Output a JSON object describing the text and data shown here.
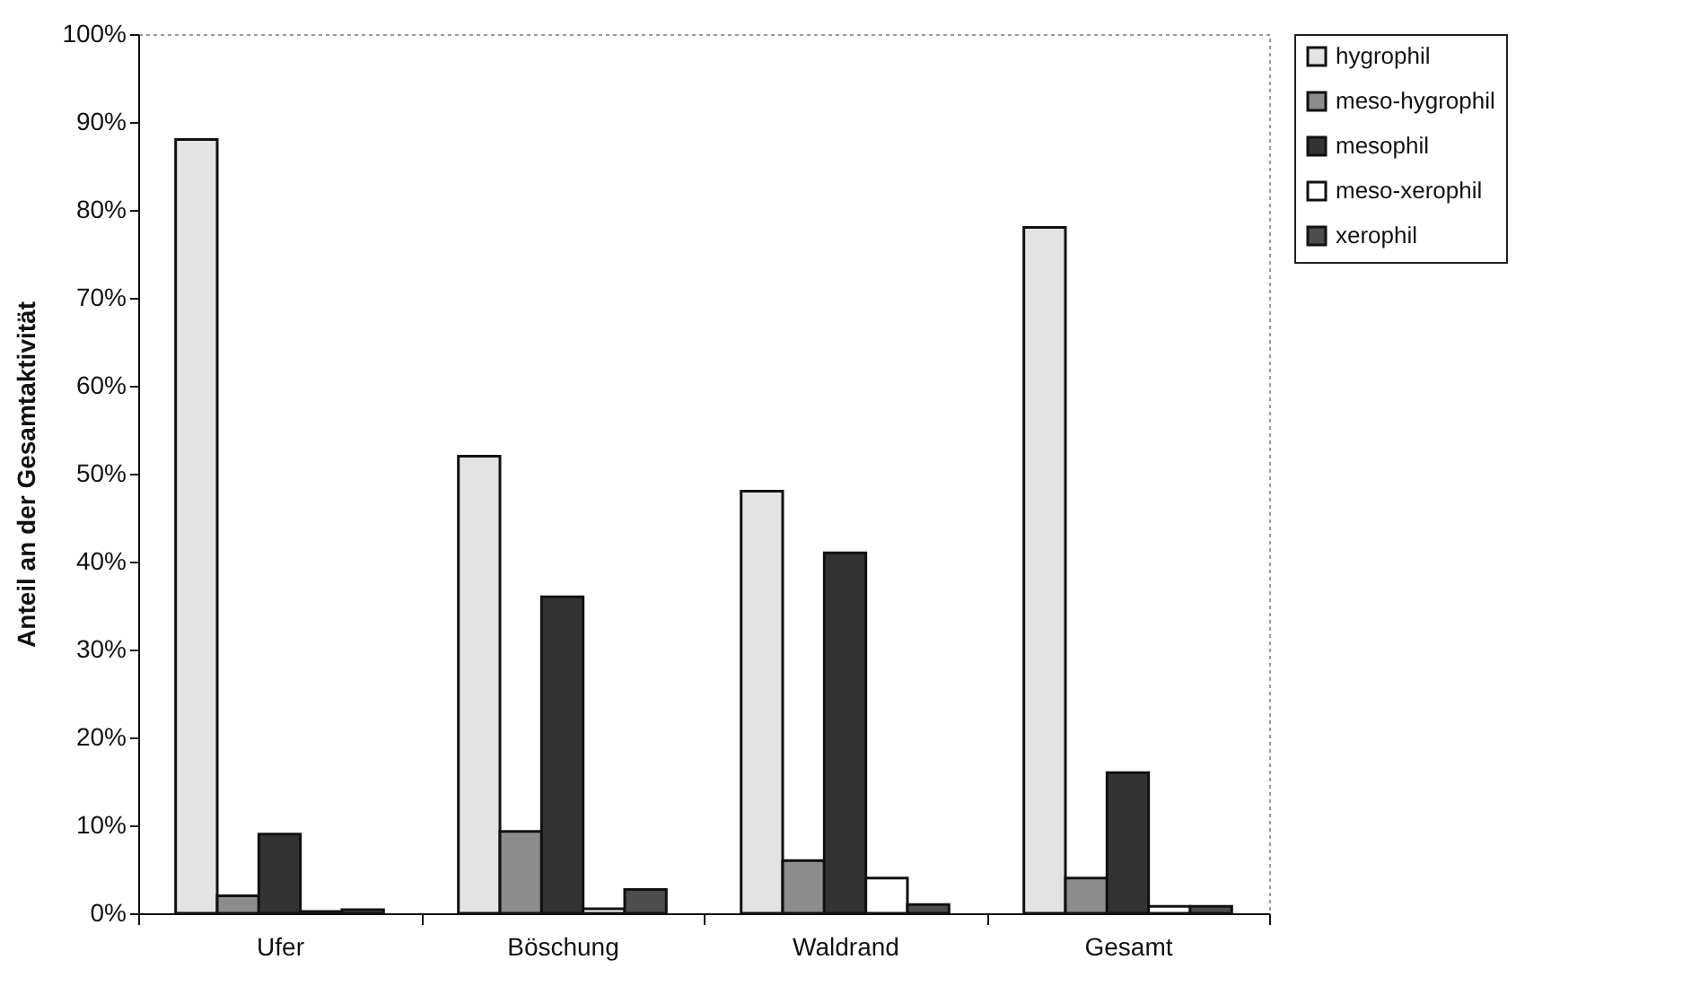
{
  "chart_data": {
    "type": "bar",
    "ylabel": "Anteil an der Gesamtaktivität",
    "categories": [
      "Ufer",
      "Böschung",
      "Waldrand",
      "Gesamt"
    ],
    "series": [
      {
        "name": "hygrophil",
        "color": "#e3e3e3",
        "values": [
          88,
          52,
          48,
          78
        ]
      },
      {
        "name": "meso-hygrophil",
        "color": "#8c8c8c",
        "values": [
          2,
          9.3,
          6,
          4
        ]
      },
      {
        "name": "mesophil",
        "color": "#333333",
        "values": [
          9,
          36,
          41,
          16
        ]
      },
      {
        "name": "meso-xerophil",
        "color": "#ffffff",
        "values": [
          0.2,
          0.5,
          4,
          0.8
        ]
      },
      {
        "name": "xerophil",
        "color": "#4d4d4d",
        "values": [
          0.4,
          2.7,
          1,
          0.8
        ]
      }
    ],
    "ylim": [
      0,
      100
    ],
    "yticks": [
      {
        "value": 0,
        "label": "0%"
      },
      {
        "value": 10,
        "label": "10%"
      },
      {
        "value": 20,
        "label": "20%"
      },
      {
        "value": 30,
        "label": "30%"
      },
      {
        "value": 40,
        "label": "40%"
      },
      {
        "value": 50,
        "label": "50%"
      },
      {
        "value": 60,
        "label": "60%"
      },
      {
        "value": 70,
        "label": "70%"
      },
      {
        "value": 80,
        "label": "80%"
      },
      {
        "value": 90,
        "label": "90%"
      },
      {
        "value": 100,
        "label": "100%"
      }
    ],
    "grid": false,
    "legend": "right"
  }
}
